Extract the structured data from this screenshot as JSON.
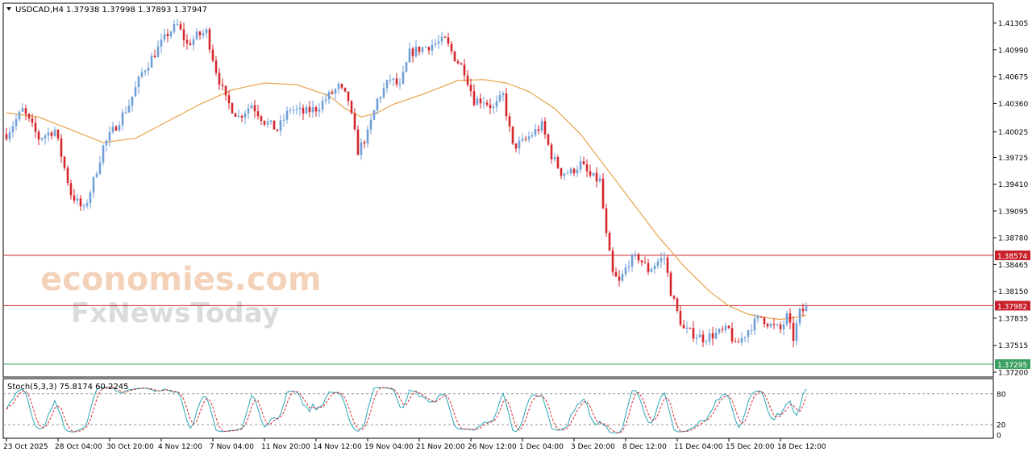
{
  "header": {
    "symbol_label": "USDCAD,H4",
    "ohlc_label": "1.37938 1.37998 1.37893 1.37947",
    "menu_icon": "triangle-down-icon"
  },
  "watermark": {
    "line1": "economies.com",
    "line2": "FxNewsToday"
  },
  "colors": {
    "bull": "#6f9fd8",
    "bear": "#d6262b",
    "ma": "#e8a24a",
    "resistance": "#b0202a",
    "support": "#3a9a5a",
    "stoch_main": "#2aa6b8",
    "stoch_signal": "#d6262b",
    "axis": "#000000",
    "label_red": "#c8202a",
    "label_green": "#3aa060"
  },
  "chart_data": {
    "type": "candlestick",
    "symbol": "USDCAD",
    "timeframe": "H4",
    "ylim": [
      1.372,
      1.415
    ],
    "y_ticks": [
      "1.41305",
      "1.40990",
      "1.40675",
      "1.40360",
      "1.40025",
      "1.39725",
      "1.39410",
      "1.39095",
      "1.38780",
      "1.38465",
      "1.38150",
      "1.37835",
      "1.37515",
      "1.37200"
    ],
    "x_tick_labels": [
      "23 Oct 2025",
      "28 Oct 04:00",
      "30 Oct 20:00",
      "4 Nov 12:00",
      "7 Nov 04:00",
      "11 Nov 20:00",
      "14 Nov 12:00",
      "19 Nov 04:00",
      "21 Nov 20:00",
      "26 Nov 12:00",
      "1 Dec 04:00",
      "3 Dec 20:00",
      "8 Dec 12:00",
      "11 Dec 04:00",
      "15 Dec 20:00",
      "18 Dec 12:00"
    ],
    "x_tick_index": [
      0,
      16,
      32,
      48,
      64,
      80,
      96,
      112,
      128,
      144,
      160,
      176,
      192,
      208,
      224,
      240
    ],
    "price_path": [
      [
        0,
        1.4
      ],
      [
        5,
        1.4028
      ],
      [
        10,
        1.3995
      ],
      [
        15,
        1.4005
      ],
      [
        20,
        1.393
      ],
      [
        24,
        1.391
      ],
      [
        27,
        1.3945
      ],
      [
        30,
        1.3985
      ],
      [
        34,
        1.401
      ],
      [
        38,
        1.4035
      ],
      [
        42,
        1.4072
      ],
      [
        46,
        1.4095
      ],
      [
        50,
        1.4118
      ],
      [
        53,
        1.4128
      ],
      [
        56,
        1.4105
      ],
      [
        59,
        1.4115
      ],
      [
        62,
        1.412
      ],
      [
        65,
        1.4075
      ],
      [
        68,
        1.404
      ],
      [
        72,
        1.402
      ],
      [
        76,
        1.4035
      ],
      [
        80,
        1.4015
      ],
      [
        84,
        1.4005
      ],
      [
        88,
        1.403
      ],
      [
        92,
        1.4025
      ],
      [
        96,
        1.403
      ],
      [
        100,
        1.4045
      ],
      [
        103,
        1.4055
      ],
      [
        106,
        1.404
      ],
      [
        109,
        1.398
      ],
      [
        112,
        1.4
      ],
      [
        115,
        1.404
      ],
      [
        119,
        1.4065
      ],
      [
        122,
        1.4055
      ],
      [
        125,
        1.4095
      ],
      [
        128,
        1.41
      ],
      [
        132,
        1.4105
      ],
      [
        136,
        1.411
      ],
      [
        139,
        1.409
      ],
      [
        142,
        1.4075
      ],
      [
        145,
        1.404
      ],
      [
        148,
        1.404
      ],
      [
        151,
        1.403
      ],
      [
        154,
        1.4045
      ],
      [
        157,
        1.3985
      ],
      [
        160,
        1.399
      ],
      [
        163,
        1.4
      ],
      [
        166,
        1.401
      ],
      [
        169,
        1.3975
      ],
      [
        172,
        1.3955
      ],
      [
        175,
        1.3955
      ],
      [
        178,
        1.3965
      ],
      [
        181,
        1.395
      ],
      [
        184,
        1.3945
      ],
      [
        186,
        1.388
      ],
      [
        188,
        1.3835
      ],
      [
        190,
        1.3825
      ],
      [
        193,
        1.385
      ],
      [
        196,
        1.3855
      ],
      [
        199,
        1.384
      ],
      [
        202,
        1.385
      ],
      [
        204,
        1.3855
      ],
      [
        206,
        1.3815
      ],
      [
        208,
        1.379
      ],
      [
        210,
        1.377
      ],
      [
        213,
        1.3765
      ],
      [
        216,
        1.376
      ],
      [
        220,
        1.3765
      ],
      [
        224,
        1.377
      ],
      [
        226,
        1.375
      ],
      [
        228,
        1.376
      ],
      [
        231,
        1.3775
      ],
      [
        234,
        1.3785
      ],
      [
        237,
        1.3775
      ],
      [
        240,
        1.377
      ],
      [
        242,
        1.3785
      ],
      [
        244,
        1.376
      ],
      [
        246,
        1.379
      ],
      [
        248,
        1.3795
      ]
    ],
    "ma_path": [
      [
        0,
        1.4025
      ],
      [
        10,
        1.402
      ],
      [
        20,
        1.4005
      ],
      [
        30,
        1.399
      ],
      [
        40,
        1.3995
      ],
      [
        50,
        1.4015
      ],
      [
        60,
        1.4035
      ],
      [
        70,
        1.4052
      ],
      [
        80,
        1.406
      ],
      [
        90,
        1.4058
      ],
      [
        100,
        1.4045
      ],
      [
        105,
        1.403
      ],
      [
        110,
        1.402
      ],
      [
        115,
        1.4025
      ],
      [
        120,
        1.4035
      ],
      [
        130,
        1.4048
      ],
      [
        140,
        1.4063
      ],
      [
        148,
        1.4064
      ],
      [
        155,
        1.406
      ],
      [
        162,
        1.405
      ],
      [
        170,
        1.403
      ],
      [
        178,
        1.4
      ],
      [
        186,
        1.396
      ],
      [
        194,
        1.392
      ],
      [
        202,
        1.388
      ],
      [
        210,
        1.3845
      ],
      [
        218,
        1.3815
      ],
      [
        224,
        1.3798
      ],
      [
        230,
        1.3788
      ],
      [
        236,
        1.3784
      ],
      [
        240,
        1.3782
      ],
      [
        244,
        1.3784
      ],
      [
        248,
        1.3787
      ]
    ],
    "candle_count": 249,
    "levels": [
      {
        "name": "resistance-1",
        "price": 1.38574,
        "label": "1.38574",
        "color": "#c8202a"
      },
      {
        "name": "resistance-2",
        "price": 1.37982,
        "label": "1.37982",
        "color": "#c8202a"
      },
      {
        "name": "support-1",
        "price": 1.37295,
        "label": "1.37295",
        "color": "#3aa060"
      }
    ],
    "indicator": {
      "label": "Stoch(5,3,3) 75.8174 60.2245",
      "levels": [
        "80",
        "20",
        "0"
      ],
      "level_values": [
        80,
        20,
        0
      ],
      "ylim": [
        0,
        100
      ]
    }
  }
}
